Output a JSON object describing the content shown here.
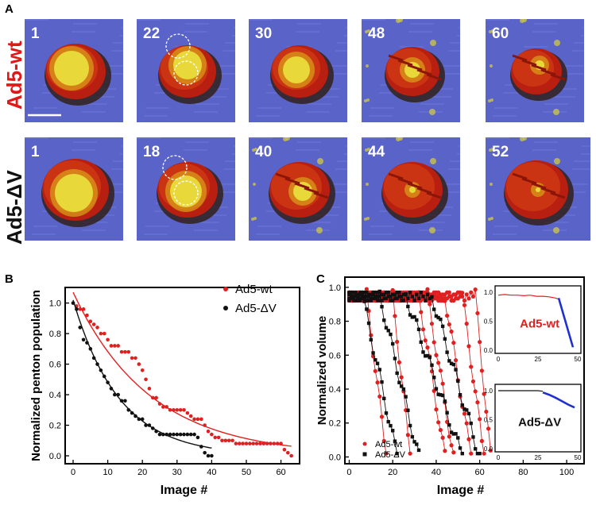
{
  "panels": {
    "a": "A",
    "b": "B",
    "c": "C"
  },
  "panel_a": {
    "row_labels": [
      "Ad5-wt",
      "Ad5-ΔV"
    ],
    "row_label_colors": [
      "#e01818",
      "#111111"
    ],
    "rows": [
      {
        "frames": [
          "1",
          "22",
          "30",
          "48",
          "60"
        ]
      },
      {
        "frames": [
          "1",
          "18",
          "40",
          "44",
          "52"
        ]
      }
    ],
    "icons": [
      "scale-bar-icon",
      "dashed-circle-icon"
    ]
  },
  "chart_data": [
    {
      "type": "scatter",
      "xlabel": "Image #",
      "ylabel": "Normalized penton population",
      "xlim": [
        0,
        64
      ],
      "ylim": [
        0,
        1.05
      ],
      "xticks": [
        "0",
        "10",
        "20",
        "30",
        "40",
        "50",
        "60"
      ],
      "yticks": [
        "0.0",
        "0.2",
        "0.4",
        "0.6",
        "0.8",
        "1.0"
      ],
      "legend": "top-right",
      "series": [
        {
          "name": "Ad5-wt",
          "color": "#e02020",
          "x": [
            0,
            1,
            2,
            3,
            4,
            5,
            6,
            7,
            8,
            9,
            10,
            11,
            12,
            13,
            14,
            15,
            16,
            17,
            18,
            19,
            20,
            21,
            22,
            23,
            24,
            25,
            26,
            27,
            28,
            29,
            30,
            31,
            32,
            33,
            34,
            35,
            36,
            37,
            38,
            39,
            40,
            41,
            42,
            43,
            44,
            45,
            46,
            47,
            48,
            49,
            50,
            51,
            52,
            53,
            54,
            55,
            56,
            57,
            58,
            59,
            60,
            61,
            62,
            63
          ],
          "y": [
            1.0,
            0.98,
            0.96,
            0.96,
            0.92,
            0.88,
            0.86,
            0.84,
            0.8,
            0.8,
            0.76,
            0.72,
            0.72,
            0.72,
            0.68,
            0.68,
            0.68,
            0.64,
            0.64,
            0.6,
            0.56,
            0.5,
            0.44,
            0.38,
            0.38,
            0.34,
            0.32,
            0.32,
            0.3,
            0.3,
            0.3,
            0.3,
            0.3,
            0.28,
            0.26,
            0.24,
            0.24,
            0.24,
            0.2,
            0.16,
            0.14,
            0.12,
            0.12,
            0.1,
            0.1,
            0.1,
            0.1,
            0.08,
            0.08,
            0.08,
            0.08,
            0.08,
            0.08,
            0.08,
            0.08,
            0.08,
            0.08,
            0.08,
            0.08,
            0.08,
            0.08,
            0.04,
            0.02,
            0.0
          ],
          "fit": {
            "a": 1.07,
            "k": 0.045
          }
        },
        {
          "name": "Ad5-ΔV",
          "color": "#111111",
          "x": [
            0,
            1,
            2,
            3,
            4,
            5,
            6,
            7,
            8,
            9,
            10,
            11,
            12,
            13,
            14,
            15,
            16,
            17,
            18,
            19,
            20,
            21,
            22,
            23,
            24,
            25,
            26,
            27,
            28,
            29,
            30,
            31,
            32,
            33,
            34,
            35,
            36,
            37,
            38,
            39,
            40
          ],
          "y": [
            1.0,
            0.96,
            0.84,
            0.76,
            0.74,
            0.7,
            0.64,
            0.6,
            0.56,
            0.52,
            0.48,
            0.44,
            0.4,
            0.4,
            0.36,
            0.36,
            0.3,
            0.28,
            0.26,
            0.24,
            0.24,
            0.2,
            0.2,
            0.18,
            0.16,
            0.14,
            0.14,
            0.14,
            0.14,
            0.14,
            0.14,
            0.14,
            0.14,
            0.14,
            0.14,
            0.14,
            0.12,
            0.06,
            0.02,
            0.0,
            0.0
          ],
          "fit": {
            "a": 1.02,
            "k": 0.075
          }
        }
      ]
    },
    {
      "type": "scatter",
      "xlabel": "Image #",
      "ylabel": "Normalized volume",
      "xlim": [
        -2,
        108
      ],
      "ylim": [
        -0.04,
        1.06
      ],
      "xticks": [
        "0",
        "20",
        "40",
        "60",
        "80",
        "100"
      ],
      "yticks": [
        "0.0",
        "0.2",
        "0.4",
        "0.6",
        "0.8",
        "1.0"
      ],
      "legend": "bottom-left",
      "series": [
        {
          "name": "Ad5-wt",
          "color": "#e02020",
          "traces": [
            {
              "end": 17,
              "drop_start": 8
            },
            {
              "end": 28,
              "drop_start": 20
            },
            {
              "end": 44,
              "drop_start": 32
            },
            {
              "end": 48,
              "drop_start": 36
            },
            {
              "end": 56,
              "drop_start": 44
            },
            {
              "end": 62,
              "drop_start": 52
            },
            {
              "end": 65,
              "drop_start": 58
            }
          ]
        },
        {
          "name": "Ad5-ΔV",
          "color": "#111111",
          "traces": [
            {
              "end": 22,
              "drop_start": 6
            },
            {
              "end": 32,
              "drop_start": 14
            },
            {
              "end": 52,
              "drop_start": 26
            },
            {
              "end": 60,
              "drop_start": 38
            }
          ]
        }
      ]
    },
    {
      "type": "line",
      "title": "Ad5-wt",
      "title_color": "#e02020",
      "xticks": [
        "0",
        "25",
        "50"
      ],
      "yticks": [
        "0.0",
        "0.5",
        "1.0"
      ],
      "xlim": [
        0,
        50
      ],
      "ylim": [
        0,
        1.0
      ],
      "series": [
        {
          "name": "data",
          "color": "#e02020",
          "x": [
            0,
            4,
            8,
            12,
            16,
            20,
            24,
            28,
            32,
            36,
            38
          ],
          "y": [
            0.95,
            0.96,
            0.95,
            0.95,
            0.94,
            0.95,
            0.93,
            0.93,
            0.92,
            0.9,
            0.88
          ]
        },
        {
          "name": "fit",
          "color": "#2030d0",
          "x": [
            38,
            47
          ],
          "y": [
            0.9,
            0.05
          ]
        }
      ]
    },
    {
      "type": "line",
      "title": "Ad5-ΔV",
      "title_color": "#111111",
      "xticks": [
        "0",
        "25",
        "50"
      ],
      "yticks": [
        "0.0",
        "0.5",
        "1.0"
      ],
      "xlim": [
        0,
        50
      ],
      "ylim": [
        0,
        1.0
      ],
      "series": [
        {
          "name": "data",
          "color": "#111111",
          "x": [
            0,
            5,
            10,
            15,
            20,
            25,
            28
          ],
          "y": [
            1.0,
            1.0,
            1.0,
            1.0,
            1.0,
            1.0,
            0.99
          ]
        },
        {
          "name": "fit",
          "color": "#2030d0",
          "x": [
            28,
            32,
            36,
            40,
            44,
            48
          ],
          "y": [
            0.97,
            0.93,
            0.88,
            0.82,
            0.76,
            0.71
          ]
        }
      ]
    }
  ]
}
